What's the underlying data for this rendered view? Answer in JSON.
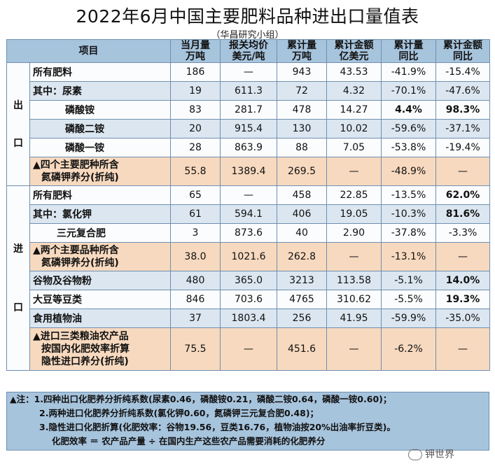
{
  "title": "2022年6月中国主要肥料品种进出口量值表",
  "subtitle": "（华昌研究小组）",
  "header": {
    "item": "项目",
    "c1": [
      "当月量",
      "万吨"
    ],
    "c2": [
      "报关均价",
      "美元/吨"
    ],
    "c3": [
      "累计量",
      "万吨"
    ],
    "c4": [
      "累计金额",
      "亿美元"
    ],
    "c5": [
      "累计量",
      "同比"
    ],
    "c6": [
      "累计金额",
      "同比"
    ]
  },
  "export_label": [
    "出",
    "口"
  ],
  "import_label": [
    "进",
    "口"
  ],
  "export_rows": [
    {
      "label": "所有肥料",
      "v": [
        "186",
        "—",
        "943",
        "43.53",
        "-41.9%",
        "-15.4%"
      ]
    },
    {
      "label": "其中：尿素",
      "v": [
        "19",
        "611.3",
        "72",
        "4.32",
        "-70.1%",
        "-47.6%"
      ]
    },
    {
      "label": "磷酸铵",
      "v": [
        "83",
        "281.7",
        "478",
        "14.27",
        "4.4%",
        "98.3%"
      ]
    },
    {
      "label": "磷酸二铵",
      "v": [
        "20",
        "915.4",
        "130",
        "10.02",
        "-59.6%",
        "-37.1%"
      ]
    },
    {
      "label": "磷酸一铵",
      "v": [
        "28",
        "863.9",
        "88",
        "7.05",
        "-53.8%",
        "-19.4%"
      ]
    },
    {
      "label": [
        "▲四个主要肥种所含",
        "氮磷钾养分(折纯)"
      ],
      "v": [
        "55.8",
        "1389.4",
        "269.5",
        "—",
        "-48.9%",
        "—"
      ]
    }
  ],
  "import_rows": [
    {
      "label": "所有肥料",
      "v": [
        "65",
        "—",
        "458",
        "22.85",
        "-13.5%",
        "62.0%"
      ]
    },
    {
      "label": "其中：氯化钾",
      "v": [
        "61",
        "594.1",
        "406",
        "19.05",
        "-10.3%",
        "81.6%"
      ]
    },
    {
      "label": "三元复合肥",
      "v": [
        "3",
        "873.6",
        "40",
        "2.90",
        "-37.8%",
        "-3.3%"
      ]
    },
    {
      "label": [
        "▲两个主要品种所含",
        "氮磷钾养分(折纯)"
      ],
      "v": [
        "38.0",
        "1021.6",
        "262.8",
        "—",
        "-13.1%",
        "—"
      ]
    },
    {
      "label": "谷物及谷物粉",
      "v": [
        "480",
        "365.0",
        "3213",
        "113.58",
        "-5.1%",
        "14.0%"
      ]
    },
    {
      "label": "大豆等豆类",
      "v": [
        "846",
        "703.6",
        "4765",
        "310.62",
        "-5.5%",
        "19.3%"
      ]
    },
    {
      "label": "食用植物油",
      "v": [
        "37",
        "1803.4",
        "256",
        "41.95",
        "-59.9%",
        "-35.0%"
      ]
    },
    {
      "label": [
        "▲进口三类粮油农产品",
        "按国内化肥效率折算",
        "隐性进口养分(折纯)"
      ],
      "v": [
        "75.5",
        "—",
        "451.6",
        "—",
        "-6.2%",
        "—"
      ]
    }
  ],
  "notes": [
    "▲注：1.四种出口化肥养分折纯系数(尿素0.46，磷酸铵0.21，磷酸二铵0.64，磷酸一铵0.60)；",
    "2.两种进口化肥养分折纯系数(氯化钾0.60，氮磷钾三元复合肥0.48)；",
    "3.隐性进口化肥折算(化肥效率：谷物19.56，豆类16.76，植物油按20%出油率折豆类)。",
    "化肥效率 ＝ 农产品产量 ÷ 在国内生产这些农产品需要消耗的化肥养分"
  ],
  "watermark": "钾世界",
  "colors": {
    "header_bg": "#a7c4dd",
    "band_blue": "#dbe6f0",
    "band_orange": "#f7d9bf",
    "positive": "#c3121f",
    "negative": "#1f8a36"
  }
}
